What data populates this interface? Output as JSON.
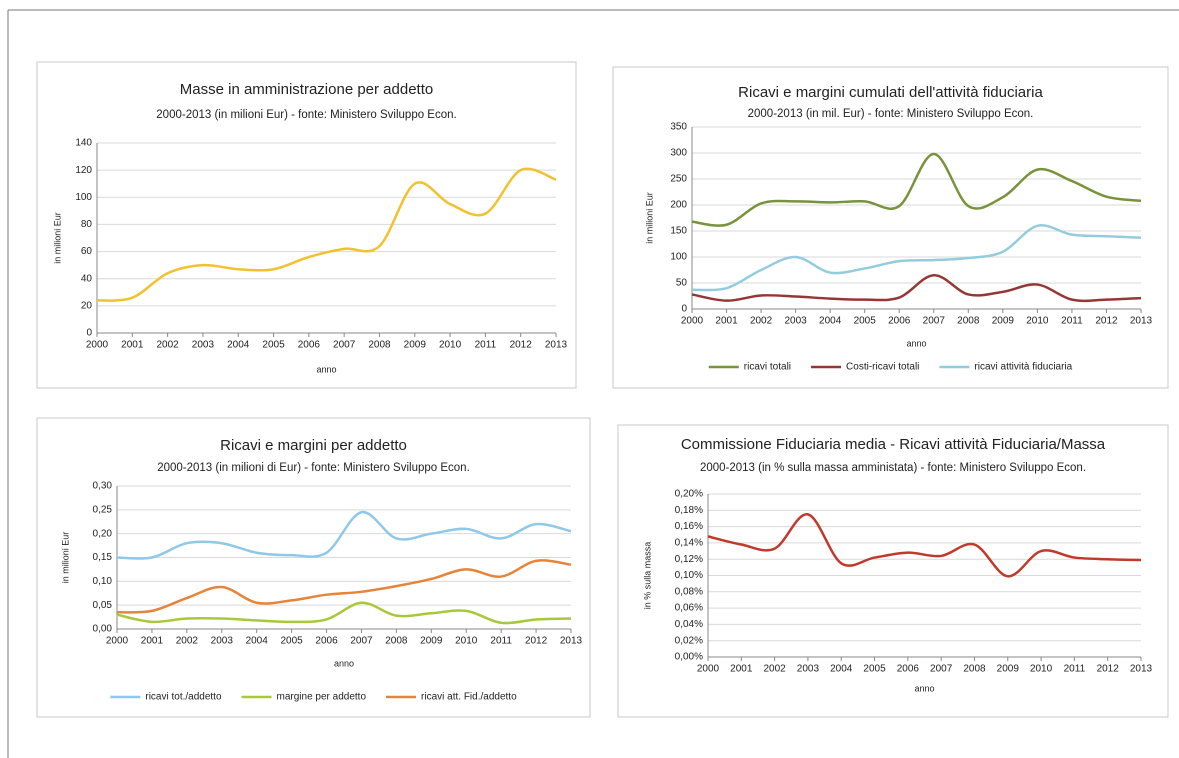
{
  "chart_data": [
    {
      "type": "line",
      "title": "Masse in amministrazione per addetto",
      "subtitle": "2000-2013 (in milioni Eur)  - fonte: Ministero Sviluppo Econ.",
      "x_label": "anno",
      "y_label": "in milioni Eur",
      "x": [
        2000,
        2001,
        2002,
        2003,
        2004,
        2005,
        2006,
        2007,
        2008,
        2009,
        2010,
        2011,
        2012,
        2013
      ],
      "xlim": [
        2000,
        2013
      ],
      "values": [
        24,
        26,
        44,
        50,
        47,
        47,
        56,
        62,
        64,
        110,
        95,
        88,
        120,
        113
      ],
      "color": "#f2c12e",
      "ylim": [
        0,
        140
      ],
      "yticks": [
        0,
        20,
        40,
        60,
        80,
        100,
        120,
        140
      ],
      "grid": true
    },
    {
      "type": "line",
      "title": "Ricavi e margini cumulati dell'attività fiduciaria",
      "subtitle": "2000-2013 (in mil. Eur) - fonte: Ministero Sviluppo Econ.",
      "x_label": "anno",
      "y_label": "in milioni Eur",
      "x": [
        2000,
        2001,
        2002,
        2003,
        2004,
        2005,
        2006,
        2007,
        2008,
        2009,
        2010,
        2011,
        2012,
        2013
      ],
      "xlim": [
        2000,
        2013
      ],
      "series": [
        {
          "name": "ricavi  totali",
          "color": "#77933c",
          "values": [
            168,
            162,
            203,
            207,
            205,
            207,
            198,
            298,
            198,
            215,
            268,
            246,
            216,
            208
          ]
        },
        {
          "name": "Costi-ricavi  totali",
          "color": "#953735",
          "values": [
            28,
            16,
            26,
            24,
            20,
            18,
            22,
            65,
            28,
            33,
            47,
            18,
            18,
            21
          ]
        },
        {
          "name": "ricavi attività fiduciaria",
          "color": "#93cddd",
          "values": [
            37,
            40,
            75,
            100,
            70,
            78,
            92,
            94,
            98,
            110,
            160,
            143,
            140,
            137
          ]
        }
      ],
      "ylim": [
        0,
        350
      ],
      "yticks": [
        0,
        50,
        100,
        150,
        200,
        250,
        300,
        350
      ],
      "grid": true,
      "legend": "bottom"
    },
    {
      "type": "line",
      "title": "Ricavi e margini per addetto",
      "subtitle": "2000-2013 (in milioni di Eur)  - fonte: Ministero Sviluppo Econ.",
      "x_label": "anno",
      "y_label": "in milioni Eur",
      "x": [
        2000,
        2001,
        2002,
        2003,
        2004,
        2005,
        2006,
        2007,
        2008,
        2009,
        2010,
        2011,
        2012,
        2013
      ],
      "xlim": [
        2000,
        2013
      ],
      "series": [
        {
          "name": "ricavi tot./addetto",
          "color": "#8fc8e8",
          "values": [
            0.15,
            0.15,
            0.18,
            0.18,
            0.16,
            0.155,
            0.16,
            0.245,
            0.19,
            0.2,
            0.21,
            0.19,
            0.22,
            0.205
          ]
        },
        {
          "name": "margine per addetto",
          "color": "#a8c83a",
          "values": [
            0.03,
            0.015,
            0.022,
            0.022,
            0.018,
            0.015,
            0.02,
            0.055,
            0.028,
            0.033,
            0.038,
            0.013,
            0.02,
            0.022
          ]
        },
        {
          "name": "ricavi att. Fid./addetto",
          "color": "#e6843a",
          "values": [
            0.035,
            0.038,
            0.065,
            0.088,
            0.055,
            0.06,
            0.072,
            0.078,
            0.09,
            0.105,
            0.125,
            0.11,
            0.143,
            0.135
          ]
        }
      ],
      "ylim": [
        0,
        0.3
      ],
      "yticks": [
        {
          "value": 0,
          "label": "0,00"
        },
        {
          "value": 0.05,
          "label": "0,05"
        },
        {
          "value": 0.1,
          "label": "0,10"
        },
        {
          "value": 0.15,
          "label": "0,15"
        },
        {
          "value": 0.2,
          "label": "0,20"
        },
        {
          "value": 0.25,
          "label": "0,25"
        },
        {
          "value": 0.3,
          "label": "0,30"
        }
      ],
      "grid": true,
      "legend": "bottom"
    },
    {
      "type": "line",
      "title": "Commissione Fiduciaria media - Ricavi attività Fiduciaria/Massa",
      "subtitle": "2000-2013 (in % sulla massa amministata)  - fonte: Ministero Sviluppo Econ.",
      "x_label": "anno",
      "y_label": "in % sulla massa",
      "x": [
        2000,
        2001,
        2002,
        2003,
        2004,
        2005,
        2006,
        2007,
        2008,
        2009,
        2010,
        2011,
        2012,
        2013
      ],
      "xlim": [
        2000,
        2013
      ],
      "values": [
        0.148,
        0.138,
        0.133,
        0.175,
        0.115,
        0.122,
        0.128,
        0.124,
        0.138,
        0.099,
        0.13,
        0.122,
        0.12,
        0.119
      ],
      "color": "#c0392b",
      "ylim": [
        0,
        0.2
      ],
      "yticks": [
        {
          "value": 0,
          "label": "0,00%"
        },
        {
          "value": 0.02,
          "label": "0,02%"
        },
        {
          "value": 0.04,
          "label": "0,04%"
        },
        {
          "value": 0.06,
          "label": "0,06%"
        },
        {
          "value": 0.08,
          "label": "0,08%"
        },
        {
          "value": 0.1,
          "label": "0,10%"
        },
        {
          "value": 0.12,
          "label": "0,12%"
        },
        {
          "value": 0.14,
          "label": "0,14%"
        },
        {
          "value": 0.16,
          "label": "0,16%"
        },
        {
          "value": 0.18,
          "label": "0,18%"
        },
        {
          "value": 0.2,
          "label": "0,20%"
        }
      ],
      "grid": true
    }
  ]
}
